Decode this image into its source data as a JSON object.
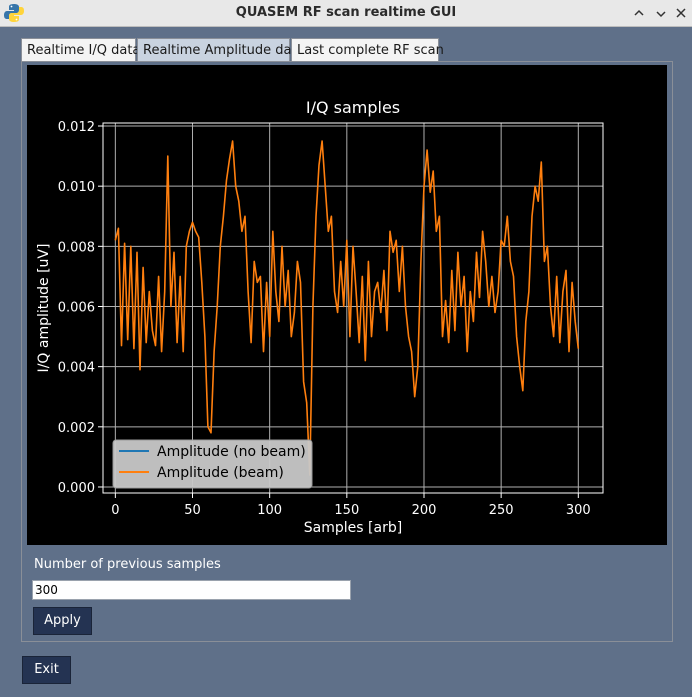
{
  "window": {
    "title": "QUASEM RF scan realtime GUI",
    "controls": [
      "chevron-up-icon",
      "minimize-icon",
      "close-icon"
    ]
  },
  "tabs": [
    {
      "label": "Realtime I/Q data",
      "active": false
    },
    {
      "label": "Realtime Amplitude data",
      "active": true
    },
    {
      "label": "Last complete RF scan",
      "active": false
    }
  ],
  "form": {
    "samples_label": "Number of previous samples",
    "samples_value": "300",
    "apply_label": "Apply"
  },
  "exit_label": "Exit",
  "colors": {
    "background": "#5f7089",
    "plot_background": "#000000",
    "series_no_beam": "#1f77b4",
    "series_beam": "#ff7f0e",
    "button": "#243352"
  },
  "chart_data": {
    "type": "line",
    "title": "I/Q samples",
    "xlabel": "Samples [arb]",
    "ylabel": "I/Q amplitude [uV]",
    "xlim": [
      -8,
      316
    ],
    "ylim": [
      -0.0002,
      0.0121
    ],
    "xticks": [
      0,
      50,
      100,
      150,
      200,
      250,
      300
    ],
    "xtick_labels": [
      "0",
      "50",
      "100",
      "150",
      "200",
      "250",
      "300"
    ],
    "yticks": [
      0.0,
      0.002,
      0.004,
      0.006,
      0.008,
      0.01,
      0.012
    ],
    "ytick_labels": [
      "0.000",
      "0.002",
      "0.004",
      "0.006",
      "0.008",
      "0.010",
      "0.012"
    ],
    "grid": true,
    "legend_position": "lower-left",
    "series": [
      {
        "name": "Amplitude (no beam)",
        "color": "#1f77b4",
        "x": [],
        "y": []
      },
      {
        "name": "Amplitude (beam)",
        "color": "#ff7f0e",
        "x": [
          0,
          2,
          4,
          6,
          8,
          10,
          12,
          14,
          16,
          18,
          20,
          22,
          24,
          26,
          28,
          30,
          32,
          34,
          36,
          38,
          40,
          42,
          44,
          46,
          48,
          50,
          52,
          54,
          56,
          58,
          60,
          62,
          64,
          66,
          68,
          70,
          72,
          74,
          76,
          78,
          80,
          82,
          84,
          86,
          88,
          90,
          92,
          94,
          96,
          98,
          100,
          102,
          104,
          106,
          108,
          110,
          112,
          114,
          116,
          118,
          120,
          122,
          124,
          126,
          128,
          130,
          132,
          134,
          136,
          138,
          140,
          142,
          144,
          146,
          148,
          150,
          152,
          154,
          156,
          158,
          160,
          162,
          164,
          166,
          168,
          170,
          172,
          174,
          176,
          178,
          180,
          182,
          184,
          186,
          188,
          190,
          192,
          194,
          196,
          198,
          200,
          202,
          204,
          206,
          208,
          210,
          212,
          214,
          216,
          218,
          220,
          222,
          224,
          226,
          228,
          230,
          232,
          234,
          236,
          238,
          240,
          242,
          244,
          246,
          248,
          250,
          252,
          254,
          256,
          258,
          260,
          262,
          264,
          266,
          268,
          270,
          272,
          274,
          276,
          278,
          280,
          282,
          284,
          286,
          288,
          290,
          292,
          294,
          296,
          298,
          300
        ],
        "y": [
          0.0082,
          0.0086,
          0.0047,
          0.0081,
          0.0049,
          0.008,
          0.0046,
          0.0078,
          0.0039,
          0.0073,
          0.0048,
          0.0065,
          0.0052,
          0.0047,
          0.007,
          0.0045,
          0.0065,
          0.011,
          0.006,
          0.0078,
          0.0048,
          0.007,
          0.0045,
          0.008,
          0.0085,
          0.0088,
          0.0085,
          0.0083,
          0.0068,
          0.005,
          0.002,
          0.0018,
          0.0045,
          0.006,
          0.008,
          0.009,
          0.0102,
          0.0109,
          0.0115,
          0.01,
          0.0095,
          0.0085,
          0.009,
          0.0065,
          0.0048,
          0.0075,
          0.0068,
          0.007,
          0.0045,
          0.0068,
          0.005,
          0.0085,
          0.0065,
          0.0055,
          0.008,
          0.006,
          0.0072,
          0.005,
          0.0058,
          0.0075,
          0.0068,
          0.0035,
          0.0028,
          0.0004,
          0.006,
          0.009,
          0.0107,
          0.0115,
          0.01,
          0.0085,
          0.009,
          0.0065,
          0.0058,
          0.0075,
          0.006,
          0.0082,
          0.005,
          0.008,
          0.0065,
          0.0048,
          0.007,
          0.0042,
          0.0075,
          0.005,
          0.0065,
          0.0068,
          0.0058,
          0.0072,
          0.0052,
          0.0085,
          0.0078,
          0.0082,
          0.0065,
          0.008,
          0.006,
          0.005,
          0.0045,
          0.003,
          0.004,
          0.0075,
          0.01,
          0.0112,
          0.0098,
          0.0105,
          0.0085,
          0.009,
          0.005,
          0.0062,
          0.0048,
          0.0072,
          0.0052,
          0.0078,
          0.006,
          0.007,
          0.0045,
          0.0065,
          0.0055,
          0.0078,
          0.0063,
          0.0085,
          0.0075,
          0.006,
          0.007,
          0.0058,
          0.0065,
          0.0082,
          0.008,
          0.009,
          0.0075,
          0.007,
          0.005,
          0.004,
          0.0032,
          0.0055,
          0.0065,
          0.009,
          0.01,
          0.0095,
          0.0108,
          0.0075,
          0.008,
          0.006,
          0.005,
          0.007,
          0.0048,
          0.0065,
          0.0072,
          0.0045,
          0.0068,
          0.0055,
          0.0046
        ]
      }
    ]
  }
}
